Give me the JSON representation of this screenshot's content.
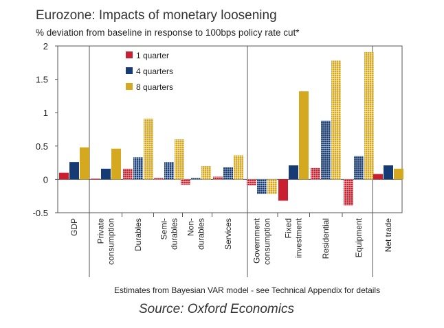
{
  "title": "Eurozone: Impacts of monetary loosening",
  "subtitle": "% deviation from baseline in response to 100bps policy rate cut*",
  "note": "Estimates from Bayesian VAR model - see Technical Appendix for details",
  "source": "Source: Oxford Economics",
  "chart_data": {
    "type": "bar",
    "ylim": [
      -0.5,
      2
    ],
    "yticks": [
      "2",
      "1.5",
      "1",
      "0.5",
      "0",
      "-0.5"
    ],
    "ytick_values": [
      2,
      1.5,
      1,
      0.5,
      0,
      -0.5
    ],
    "categories": [
      [
        "GDP"
      ],
      [
        "Private",
        "consumption"
      ],
      [
        "Durables"
      ],
      [
        "Semi-",
        "durables"
      ],
      [
        "Non-",
        "durables"
      ],
      [
        "Services"
      ],
      [
        "Government",
        "consumption"
      ],
      [
        "Fixed",
        "investment"
      ],
      [
        "Residential"
      ],
      [
        "Equipment"
      ],
      [
        "Net trade"
      ]
    ],
    "series": [
      {
        "name": "1 quarter",
        "color": "#c8202f",
        "values": [
          0.1,
          0.01,
          0.16,
          0.02,
          -0.08,
          0.04,
          -0.09,
          -0.32,
          0.17,
          -0.39,
          0.08
        ]
      },
      {
        "name": "4 quarters",
        "color": "#153a74",
        "values": [
          0.26,
          0.16,
          0.33,
          0.26,
          0.02,
          0.18,
          -0.22,
          0.21,
          0.88,
          0.35,
          0.21
        ]
      },
      {
        "name": "8 quarters",
        "color": "#d4a920",
        "values": [
          0.48,
          0.46,
          0.91,
          0.6,
          0.2,
          0.36,
          -0.22,
          1.32,
          1.78,
          1.91,
          0.16
        ]
      }
    ],
    "hatched": [
      false,
      false,
      true,
      true,
      true,
      true,
      true,
      false,
      true,
      true,
      false
    ],
    "legend": "top-left",
    "grid": false
  }
}
